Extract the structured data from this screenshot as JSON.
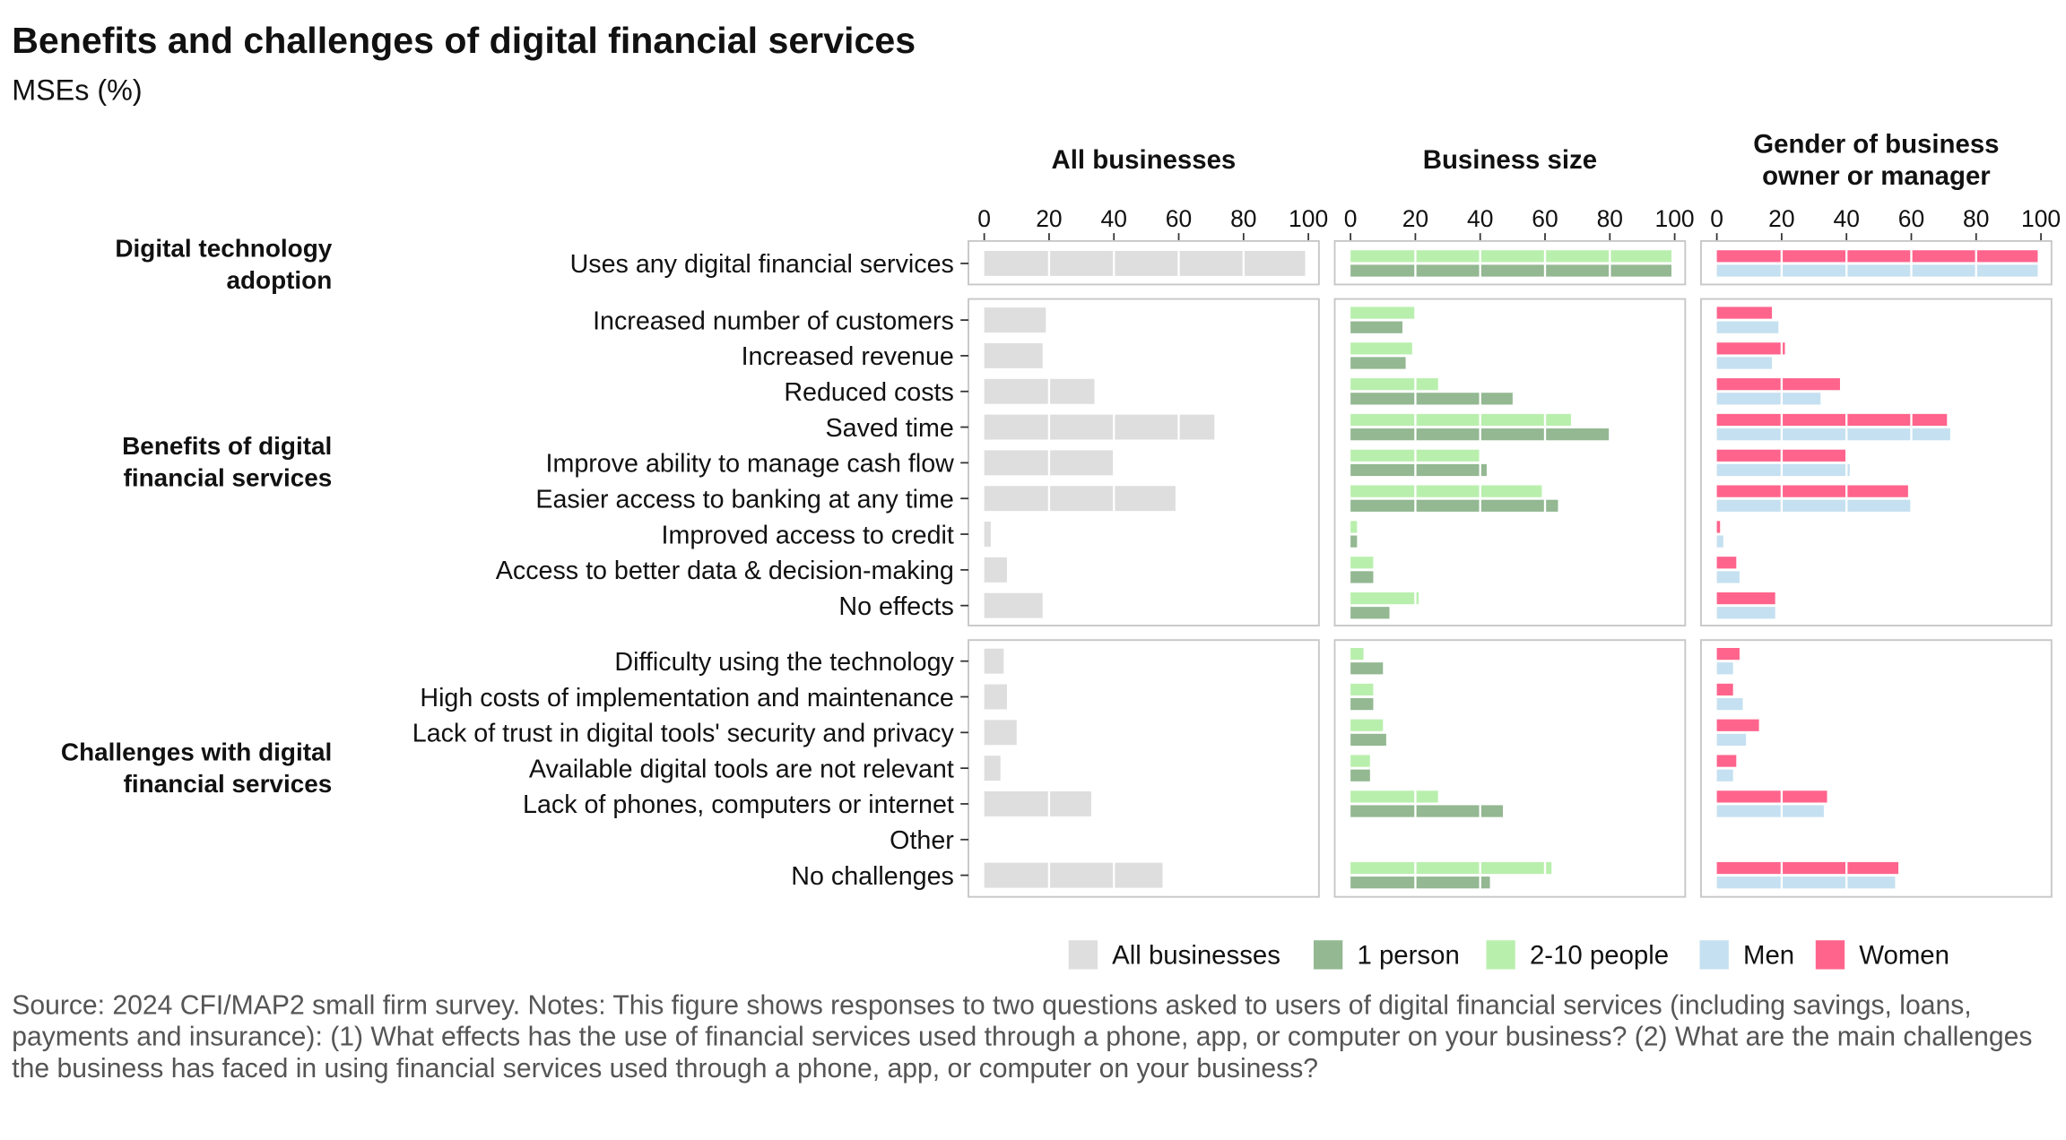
{
  "chart_data": {
    "type": "bar",
    "title": "Benefits and challenges of digital financial services",
    "subtitle": "MSEs (%)",
    "xlim": [
      0,
      100
    ],
    "ticks": [
      "0",
      "20",
      "40",
      "60",
      "80",
      "100"
    ],
    "panels": [
      "All businesses",
      "Business size",
      "Gender of business owner or manager"
    ],
    "groups": [
      {
        "label": "Digital technology adoption",
        "categories": [
          "Uses any digital financial services"
        ]
      },
      {
        "label": "Benefits of digital financial services",
        "categories": [
          "Increased number of customers",
          "Increased revenue",
          "Reduced costs",
          "Saved time",
          "Improve ability to manage cash flow",
          "Easier access to banking at any time",
          "Improved access to credit",
          "Access to better data & decision-making",
          "No effects"
        ]
      },
      {
        "label": "Challenges with digital financial services",
        "categories": [
          "Difficulty using the technology",
          "High costs of implementation and maintenance",
          "Lack of trust in digital tools' security and privacy",
          "Available digital tools are not relevant",
          "Lack of phones, computers or internet",
          "Other",
          "No challenges"
        ]
      }
    ],
    "series": [
      {
        "name": "All businesses",
        "panel": 0,
        "color": "#dedede",
        "values": [
          99,
          19,
          18,
          34,
          71,
          40,
          59,
          2,
          7,
          18,
          6,
          7,
          10,
          5,
          33,
          0,
          55
        ]
      },
      {
        "name": "2-10 people",
        "panel": 1,
        "color": "#b9efad",
        "values": [
          99,
          20,
          19,
          27,
          68,
          40,
          59,
          2,
          7,
          21,
          4,
          7,
          10,
          6,
          27,
          0,
          62
        ]
      },
      {
        "name": "1 person",
        "panel": 1,
        "color": "#93b892",
        "values": [
          99,
          16,
          17,
          50,
          80,
          42,
          64,
          2,
          7,
          12,
          10,
          7,
          11,
          6,
          47,
          0,
          43
        ]
      },
      {
        "name": "Women",
        "panel": 2,
        "color": "#ff648c",
        "values": [
          99,
          17,
          21,
          38,
          71,
          40,
          59,
          1,
          6,
          18,
          7,
          5,
          13,
          6,
          34,
          0,
          56
        ]
      },
      {
        "name": "Men",
        "panel": 2,
        "color": "#c5e0f0",
        "values": [
          99,
          19,
          17,
          32,
          72,
          41,
          60,
          2,
          7,
          18,
          5,
          8,
          9,
          5,
          33,
          0,
          55
        ]
      }
    ],
    "legend": {
      "position": "bottom-right",
      "entries": [
        "All businesses",
        "1 person",
        "2-10 people",
        "Men",
        "Women"
      ]
    },
    "source": "Source: 2024 CFI/MAP2 small firm survey. Notes: This figure shows responses to two questions asked to users of digital financial services (including savings, loans, payments and insurance): (1) What effects has the use of financial services used through a phone, app, or computer on your business? (2) What are the main challenges the business has faced in using financial services used through a phone, app, or computer on your business?"
  }
}
